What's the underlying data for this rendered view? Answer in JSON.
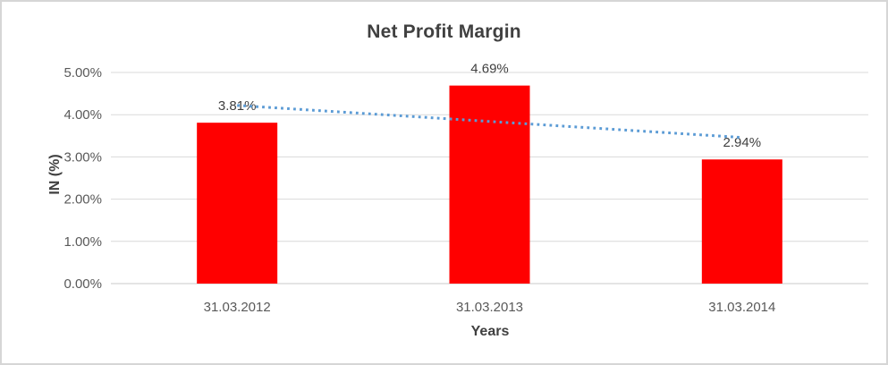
{
  "chart_data": {
    "type": "bar",
    "title": "Net Profit Margin",
    "categories": [
      "31.03.2012",
      "31.03.2013",
      "31.03.2014"
    ],
    "values": [
      3.81,
      4.69,
      2.94
    ],
    "data_labels": [
      "3.81%",
      "4.69%",
      "2.94%"
    ],
    "xlabel": "Years",
    "ylabel": "IN (%)",
    "ylim": [
      0,
      5
    ],
    "ytick_step": 1,
    "ytick_labels": [
      "0.00%",
      "1.00%",
      "2.00%",
      "3.00%",
      "4.00%",
      "5.00%"
    ],
    "grid": true,
    "legend_position": "none",
    "bar_color": "#FF0000",
    "trendline": {
      "type": "linear",
      "style": "dotted",
      "color": "#5B9BD5",
      "start_value": 4.22,
      "end_value": 3.46
    },
    "colors": {
      "title": "#404040",
      "axis_title": "#404040",
      "tick_label": "#595959",
      "data_label": "#404040",
      "gridline": "#D9D9D9",
      "axis_line": "#C9C9C9",
      "frame_border": "#D6D6D6",
      "background": "#FFFFFF"
    }
  }
}
